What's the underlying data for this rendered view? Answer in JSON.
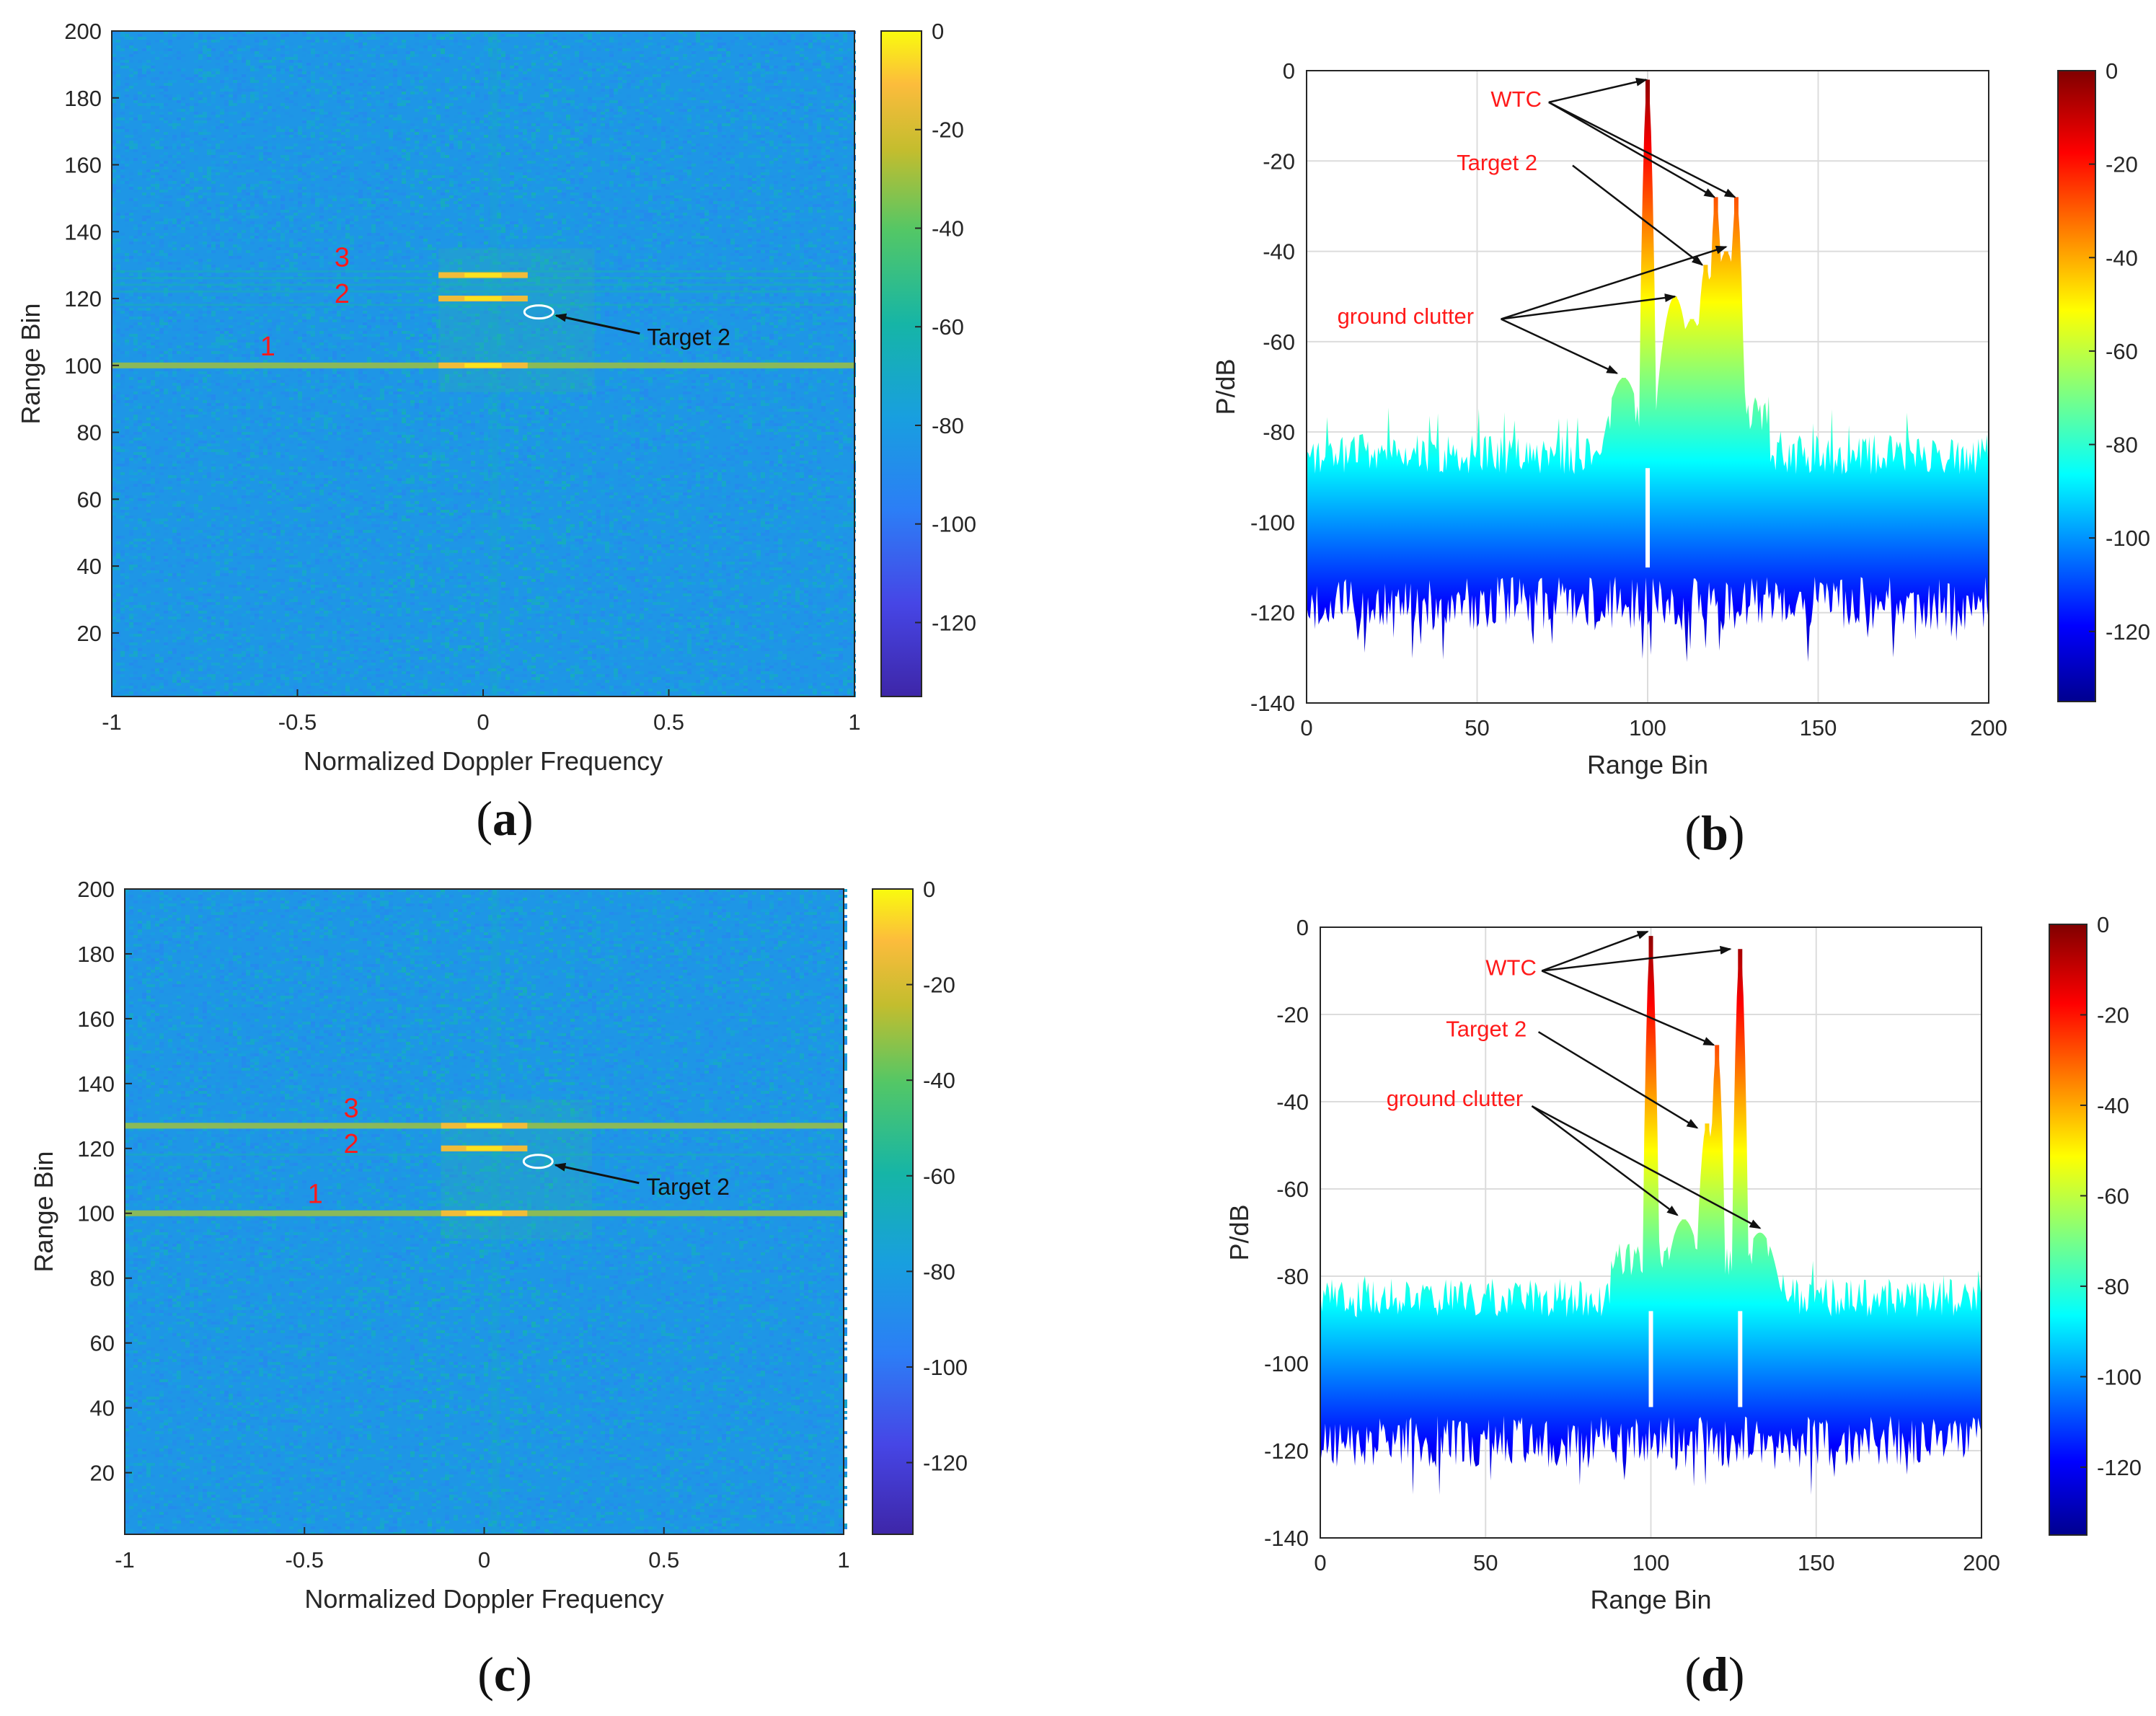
{
  "chart_data": [
    {
      "type": "heatmap",
      "panel": "a",
      "caption": "a",
      "xlabel": "Normalized Doppler Frequency",
      "ylabel": "Range Bin",
      "xlim": [
        -1,
        1
      ],
      "ylim": [
        1,
        200
      ],
      "xticks": [
        -1,
        -0.5,
        0,
        0.5,
        1
      ],
      "xtick_labels": [
        "-1",
        "-0.5",
        "0",
        "0.5",
        "1"
      ],
      "yticks": [
        20,
        40,
        60,
        80,
        100,
        120,
        140,
        160,
        180,
        200
      ],
      "colorbar": {
        "range": [
          -135,
          0
        ],
        "ticks": [
          0,
          -20,
          -40,
          -60,
          -80,
          -100,
          -120
        ],
        "colormap": "parula"
      },
      "noise_floor_db": -100,
      "bands": [
        {
          "label": "1",
          "range_bin": 100,
          "doppler_center": 0,
          "doppler_halfwidth": 1.0,
          "peak_db": -25
        },
        {
          "label": "2",
          "range_bin": 120,
          "doppler_center": 0,
          "doppler_halfwidth": 0.12,
          "peak_db": -30
        },
        {
          "label": "3",
          "range_bin": 127,
          "doppler_center": 0,
          "doppler_halfwidth": 0.12,
          "peak_db": -28
        }
      ],
      "faint_bins": [
        118,
        122,
        124,
        126,
        128
      ],
      "target_marker": {
        "label": "Target 2",
        "doppler": 0.15,
        "range_bin": 116
      },
      "color_text": "#ff1a1a"
    },
    {
      "type": "area",
      "panel": "b",
      "caption": "b",
      "xlabel": "Range Bin",
      "ylabel": "P/dB",
      "xlim": [
        0,
        200
      ],
      "ylim": [
        -140,
        0
      ],
      "xticks": [
        0,
        50,
        100,
        150,
        200
      ],
      "yticks": [
        0,
        -20,
        -40,
        -60,
        -80,
        -100,
        -120,
        -140
      ],
      "colorbar": {
        "range": [
          -135,
          0
        ],
        "ticks": [
          0,
          -20,
          -40,
          -60,
          -80,
          -100,
          -120
        ],
        "colormap": "jet"
      },
      "noise_top_db": -85,
      "noise_bottom_db": -112,
      "peaks": [
        {
          "range_bin": 100,
          "value": -2,
          "kind": "WTC"
        },
        {
          "range_bin": 120,
          "value": -28,
          "kind": "WTC"
        },
        {
          "range_bin": 126,
          "value": -28,
          "kind": "WTC"
        },
        {
          "range_bin": 117,
          "value": -43,
          "kind": "Target 2"
        },
        {
          "range_bin": 108,
          "value": -50,
          "kind": "ground clutter"
        },
        {
          "range_bin": 113,
          "value": -55,
          "kind": "ground clutter"
        },
        {
          "range_bin": 123,
          "value": -40,
          "kind": "ground clutter"
        },
        {
          "range_bin": 93,
          "value": -68,
          "kind": "ground clutter"
        }
      ],
      "notch_bins": [
        100
      ],
      "annotations": {
        "wtc": "WTC",
        "target": "Target 2",
        "clutter": "ground clutter"
      }
    },
    {
      "type": "heatmap",
      "panel": "c",
      "caption": "c",
      "xlabel": "Normalized Doppler Frequency",
      "ylabel": "Range Bin",
      "xlim": [
        -1,
        1
      ],
      "ylim": [
        1,
        200
      ],
      "xticks": [
        -1,
        -0.5,
        0,
        0.5,
        1
      ],
      "xtick_labels": [
        "-1",
        "-0.5",
        "0",
        "0.5",
        "1"
      ],
      "yticks": [
        20,
        40,
        60,
        80,
        100,
        120,
        140,
        160,
        180,
        200
      ],
      "colorbar": {
        "range": [
          -135,
          0
        ],
        "ticks": [
          0,
          -20,
          -40,
          -60,
          -80,
          -100,
          -120
        ],
        "colormap": "parula"
      },
      "noise_floor_db": -100,
      "bands": [
        {
          "label": "1",
          "range_bin": 100,
          "doppler_center": 0,
          "doppler_halfwidth": 1.0,
          "peak_db": -25
        },
        {
          "label": "2",
          "range_bin": 120,
          "doppler_center": 0,
          "doppler_halfwidth": 0.12,
          "peak_db": -35
        },
        {
          "label": "3",
          "range_bin": 127,
          "doppler_center": 0,
          "doppler_halfwidth": 1.0,
          "peak_db": -22
        }
      ],
      "faint_bins": [
        118
      ],
      "target_marker": {
        "label": "Target 2",
        "doppler": 0.15,
        "range_bin": 116
      },
      "color_text": "#ff1a1a"
    },
    {
      "type": "area",
      "panel": "d",
      "caption": "d",
      "xlabel": "Range Bin",
      "ylabel": "P/dB",
      "xlim": [
        0,
        200
      ],
      "ylim": [
        -140,
        0
      ],
      "xticks": [
        0,
        50,
        100,
        150,
        200
      ],
      "yticks": [
        0,
        -20,
        -40,
        -60,
        -80,
        -100,
        -120,
        -140
      ],
      "colorbar": {
        "range": [
          -135,
          0
        ],
        "ticks": [
          0,
          -20,
          -40,
          -60,
          -80,
          -100,
          -120
        ],
        "colormap": "jet"
      },
      "noise_top_db": -85,
      "noise_bottom_db": -112,
      "peaks": [
        {
          "range_bin": 100,
          "value": -2,
          "kind": "WTC"
        },
        {
          "range_bin": 127,
          "value": -5,
          "kind": "WTC"
        },
        {
          "range_bin": 120,
          "value": -27,
          "kind": "WTC"
        },
        {
          "range_bin": 117,
          "value": -45,
          "kind": "Target 2"
        },
        {
          "range_bin": 110,
          "value": -67,
          "kind": "ground clutter"
        },
        {
          "range_bin": 133,
          "value": -70,
          "kind": "ground clutter"
        }
      ],
      "notch_bins": [
        100,
        127
      ],
      "annotations": {
        "wtc": "WTC",
        "target": "Target 2",
        "clutter": "ground clutter"
      }
    }
  ]
}
